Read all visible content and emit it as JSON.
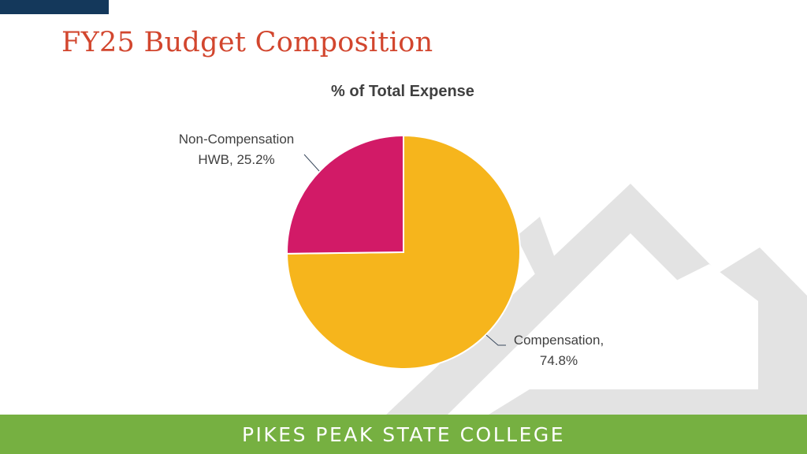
{
  "slide": {
    "title": "FY25 Budget Composition",
    "footer": "PIKES PEAK STATE COLLEGE"
  },
  "colors": {
    "title": "#d2462e",
    "accent_bar": "#14385b",
    "footer": "#76b041",
    "mountain": "#e3e3e3"
  },
  "chart_data": {
    "type": "pie",
    "title": "% of Total Expense",
    "slices": [
      {
        "label_lines": [
          "Compensation,",
          "74.8%"
        ],
        "category": "Compensation",
        "value": 74.8,
        "color": "#f6b51c"
      },
      {
        "label_lines": [
          "Non-Compensation",
          "HWB, 25.2%"
        ],
        "category": "Non-Compensation HWB",
        "value": 25.2,
        "color": "#d21a67"
      }
    ],
    "start_angle": "12 o'clock",
    "direction": "clockwise",
    "legend": "none"
  }
}
